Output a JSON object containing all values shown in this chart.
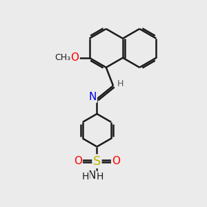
{
  "bg_color": "#ebebeb",
  "bond_color": "#1a1a1a",
  "bond_width": 1.8,
  "atom_colors": {
    "O": "#ff0000",
    "N": "#0000ee",
    "S": "#b8b800",
    "C": "#1a1a1a",
    "H": "#1a1a1a"
  },
  "font_size": 10,
  "figsize": [
    3.0,
    3.0
  ],
  "dpi": 100,
  "xl": 0,
  "xr": 10,
  "yb": 0,
  "yt": 10
}
